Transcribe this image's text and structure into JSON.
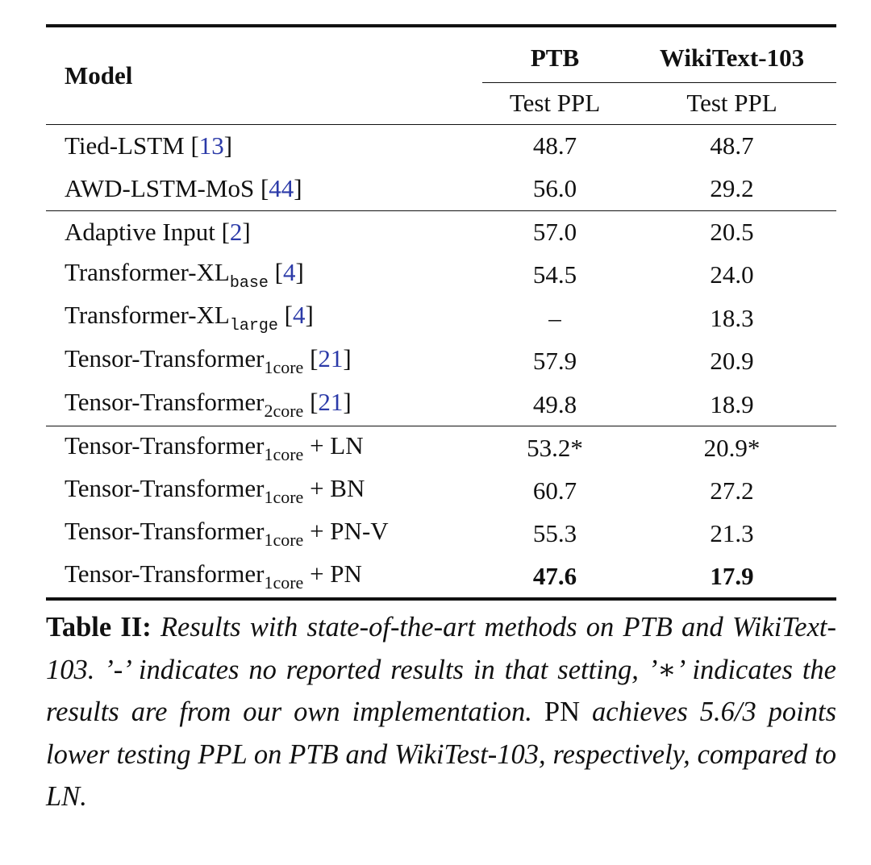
{
  "header": {
    "model": "Model",
    "ptb": "PTB",
    "wiki": "WikiText-103",
    "ptb_metric": "Test PPL",
    "wiki_metric": "Test PPL"
  },
  "groups": [
    [
      {
        "name": "Tied-LSTM",
        "sub": null,
        "suffix": null,
        "cite": "[13]",
        "ptb": "48.7",
        "wiki": "48.7"
      },
      {
        "name": "AWD-LSTM-MoS",
        "sub": null,
        "suffix": null,
        "cite": "[44]",
        "ptb": "56.0",
        "wiki": "29.2"
      }
    ],
    [
      {
        "name": "Adaptive Input",
        "sub": null,
        "suffix": null,
        "cite": "[2]",
        "ptb": "57.0",
        "wiki": "20.5"
      },
      {
        "name": "Transformer-XL",
        "sub": "base",
        "suffix": null,
        "cite": "[4]",
        "ptb": "54.5",
        "wiki": "24.0"
      },
      {
        "name": "Transformer-XL",
        "sub": "large",
        "suffix": null,
        "cite": "[4]",
        "ptb": "–",
        "wiki": "18.3"
      },
      {
        "name": "Tensor-Transformer",
        "sub": "1core",
        "suffix": null,
        "cite": "[21]",
        "ptb": "57.9",
        "wiki": "20.9"
      },
      {
        "name": "Tensor-Transformer",
        "sub": "2core",
        "suffix": null,
        "cite": "[21]",
        "ptb": "49.8",
        "wiki": "18.9"
      }
    ],
    [
      {
        "name": "Tensor-Transformer",
        "sub": "1core",
        "suffix": "+ LN",
        "cite": null,
        "ptb": "53.2*",
        "wiki": "20.9*"
      },
      {
        "name": "Tensor-Transformer",
        "sub": "1core",
        "suffix": "+ BN",
        "cite": null,
        "ptb": "60.7",
        "wiki": "27.2"
      },
      {
        "name": "Tensor-Transformer",
        "sub": "1core",
        "suffix": "+ PN-V",
        "cite": null,
        "ptb": "55.3",
        "wiki": "21.3"
      },
      {
        "name": "Tensor-Transformer",
        "sub": "1core",
        "suffix": "+ PN",
        "cite": null,
        "ptb": "47.6",
        "wiki": "17.9"
      }
    ]
  ],
  "caption": {
    "label": "Table II:",
    "parts": [
      "Results with state-of-the-art methods on PTB and WikiText-103. ’-’ indicates no reported results in that setting, ’∗’ indicates the results are from our own implementation.",
      "PN",
      "achieves 5.6/3 points lower testing PPL on PTB and WikiTest-103, respectively, compared to LN."
    ]
  }
}
